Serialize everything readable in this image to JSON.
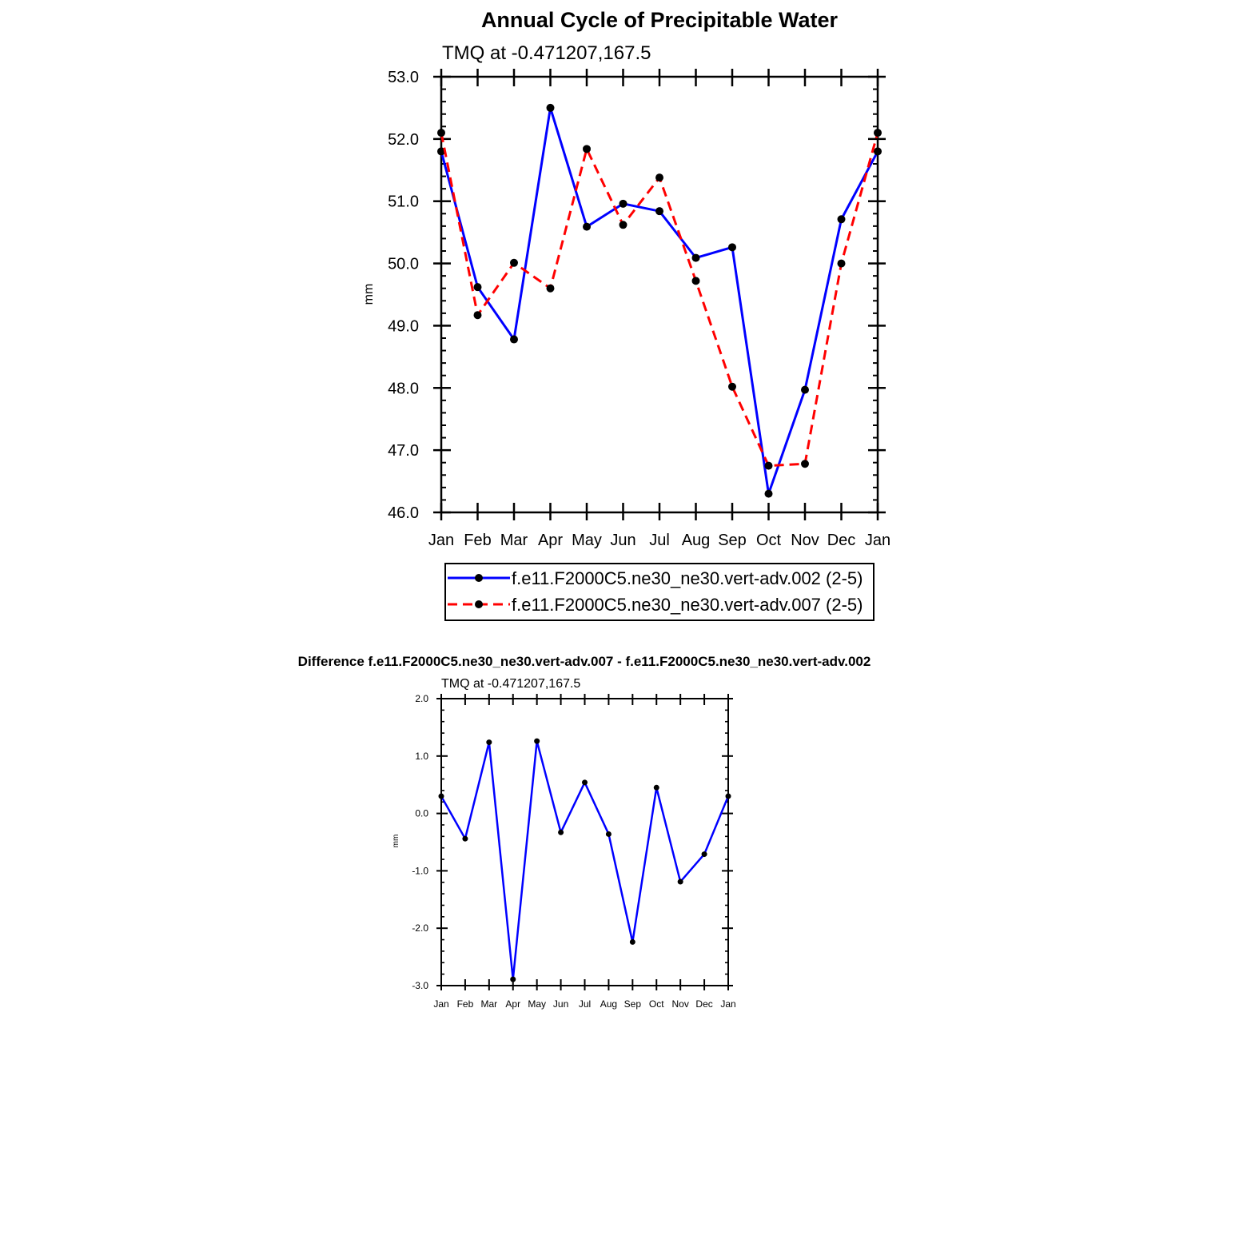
{
  "chart_data": [
    {
      "type": "line",
      "title": "Annual Cycle of Precipitable Water",
      "subtitle": "TMQ at -0.471207,167.5",
      "xlabel": "",
      "ylabel": "mm",
      "categories": [
        "Jan",
        "Feb",
        "Mar",
        "Apr",
        "May",
        "Jun",
        "Jul",
        "Aug",
        "Sep",
        "Oct",
        "Nov",
        "Dec",
        "Jan"
      ],
      "ylim": [
        46.0,
        53.0
      ],
      "yticks": [
        "46.0",
        "47.0",
        "48.0",
        "49.0",
        "50.0",
        "51.0",
        "52.0",
        "53.0"
      ],
      "grid": false,
      "legend_placement": "bottom",
      "series": [
        {
          "name": "f.e11.F2000C5.ne30_ne30.vert-adv.002 (2-5)",
          "color": "#0000ff",
          "dash": "solid",
          "values": [
            51.8,
            49.62,
            48.78,
            52.5,
            50.59,
            50.96,
            50.84,
            50.09,
            50.26,
            46.3,
            47.97,
            50.71,
            51.8
          ]
        },
        {
          "name": "f.e11.F2000C5.ne30_ne30.vert-adv.007 (2-5)",
          "color": "#ff0000",
          "dash": "dashed",
          "values": [
            52.1,
            49.17,
            50.01,
            49.6,
            51.84,
            50.62,
            51.38,
            49.72,
            48.02,
            46.75,
            46.78,
            50.0,
            52.1
          ]
        }
      ]
    },
    {
      "type": "line",
      "title": "Difference f.e11.F2000C5.ne30_ne30.vert-adv.007 - f.e11.F2000C5.ne30_ne30.vert-adv.002",
      "subtitle": "TMQ at -0.471207,167.5",
      "xlabel": "",
      "ylabel": "mm",
      "categories": [
        "Jan",
        "Feb",
        "Mar",
        "Apr",
        "May",
        "Jun",
        "Jul",
        "Aug",
        "Sep",
        "Oct",
        "Nov",
        "Dec",
        "Jan"
      ],
      "ylim": [
        -3.0,
        2.0
      ],
      "yticks": [
        "-3.0",
        "-2.0",
        "-1.0",
        "0.0",
        "1.0",
        "2.0"
      ],
      "grid": false,
      "series": [
        {
          "color": "#0000ff",
          "dash": "solid",
          "values": [
            0.3,
            -0.44,
            1.24,
            -2.89,
            1.26,
            -0.33,
            0.54,
            -0.36,
            -2.24,
            0.45,
            -1.19,
            -0.71,
            0.3
          ]
        }
      ]
    }
  ]
}
